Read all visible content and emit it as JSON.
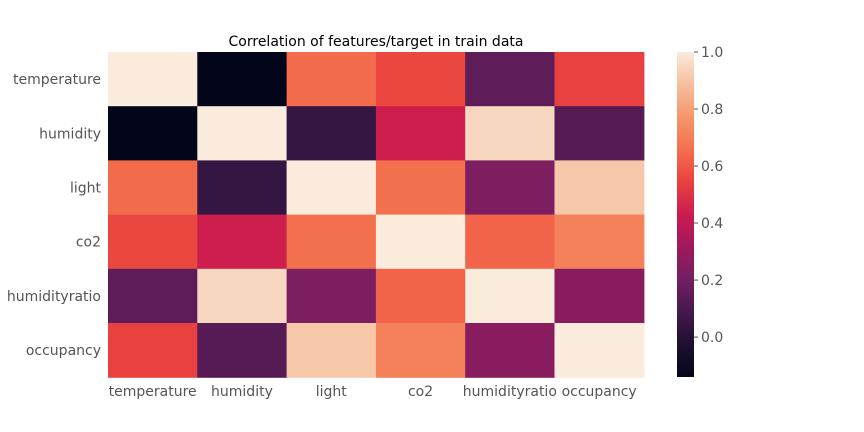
{
  "chart_data": {
    "type": "heatmap",
    "title": "Correlation of features/target in train data",
    "rows": [
      "temperature",
      "humidity",
      "light",
      "co2",
      "humidityratio",
      "occupancy"
    ],
    "cols": [
      "temperature",
      "humidity",
      "light",
      "co2",
      "humidityratio",
      "occupancy"
    ],
    "values": [
      [
        1.0,
        -0.14,
        0.65,
        0.56,
        0.15,
        0.54
      ],
      [
        -0.14,
        1.0,
        0.04,
        0.44,
        0.95,
        0.13
      ],
      [
        0.65,
        0.04,
        1.0,
        0.66,
        0.23,
        0.91
      ],
      [
        0.56,
        0.44,
        0.66,
        1.0,
        0.63,
        0.71
      ],
      [
        0.15,
        0.95,
        0.23,
        0.63,
        1.0,
        0.26
      ],
      [
        0.54,
        0.13,
        0.91,
        0.71,
        0.26,
        1.0
      ]
    ],
    "vmin": -0.14,
    "vmax": 1.0,
    "colorbar_ticks": [
      "0.0",
      "0.2",
      "0.4",
      "0.6",
      "0.8",
      "1.0"
    ],
    "colormap": "rocket",
    "grid": false,
    "colorbar_position": "right"
  }
}
